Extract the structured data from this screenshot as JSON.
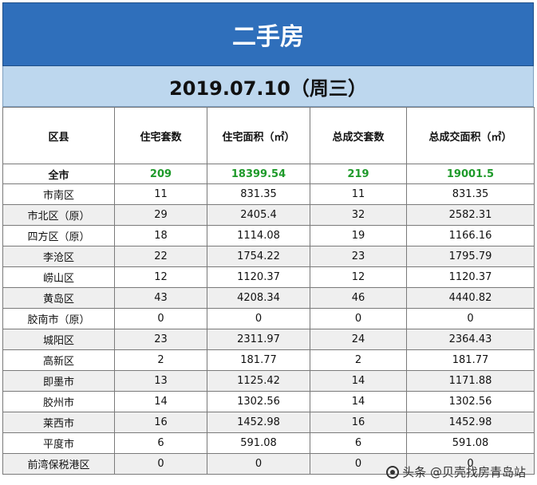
{
  "title": "二手房",
  "date": "2019.07.10（周三）",
  "table": {
    "headers": [
      "区县",
      "住宅套数",
      "住宅面积（㎡）",
      "总成交套数",
      "总成交面积（㎡）"
    ],
    "total": [
      "全市",
      "209",
      "18399.54",
      "219",
      "19001.5"
    ],
    "rows": [
      [
        "市南区",
        "11",
        "831.35",
        "11",
        "831.35"
      ],
      [
        "市北区（原）",
        "29",
        "2405.4",
        "32",
        "2582.31"
      ],
      [
        "四方区（原）",
        "18",
        "1114.08",
        "19",
        "1166.16"
      ],
      [
        "李沧区",
        "22",
        "1754.22",
        "23",
        "1795.79"
      ],
      [
        "崂山区",
        "12",
        "1120.37",
        "12",
        "1120.37"
      ],
      [
        "黄岛区",
        "43",
        "4208.34",
        "46",
        "4440.82"
      ],
      [
        "胶南市（原）",
        "0",
        "0",
        "0",
        "0"
      ],
      [
        "城阳区",
        "23",
        "2311.97",
        "24",
        "2364.43"
      ],
      [
        "高新区",
        "2",
        "181.77",
        "2",
        "181.77"
      ],
      [
        "即墨市",
        "13",
        "1125.42",
        "14",
        "1171.88"
      ],
      [
        "胶州市",
        "14",
        "1302.56",
        "14",
        "1302.56"
      ],
      [
        "莱西市",
        "16",
        "1452.98",
        "16",
        "1452.98"
      ],
      [
        "平度市",
        "6",
        "591.08",
        "6",
        "591.08"
      ],
      [
        "前湾保税港区",
        "0",
        "0",
        "0",
        "0"
      ]
    ]
  },
  "watermark": "头条 @贝壳找房青岛站",
  "colors": {
    "title_bg": "#2f6fbb",
    "date_bg": "#bdd7ee",
    "total_value": "#1e9a2a"
  }
}
